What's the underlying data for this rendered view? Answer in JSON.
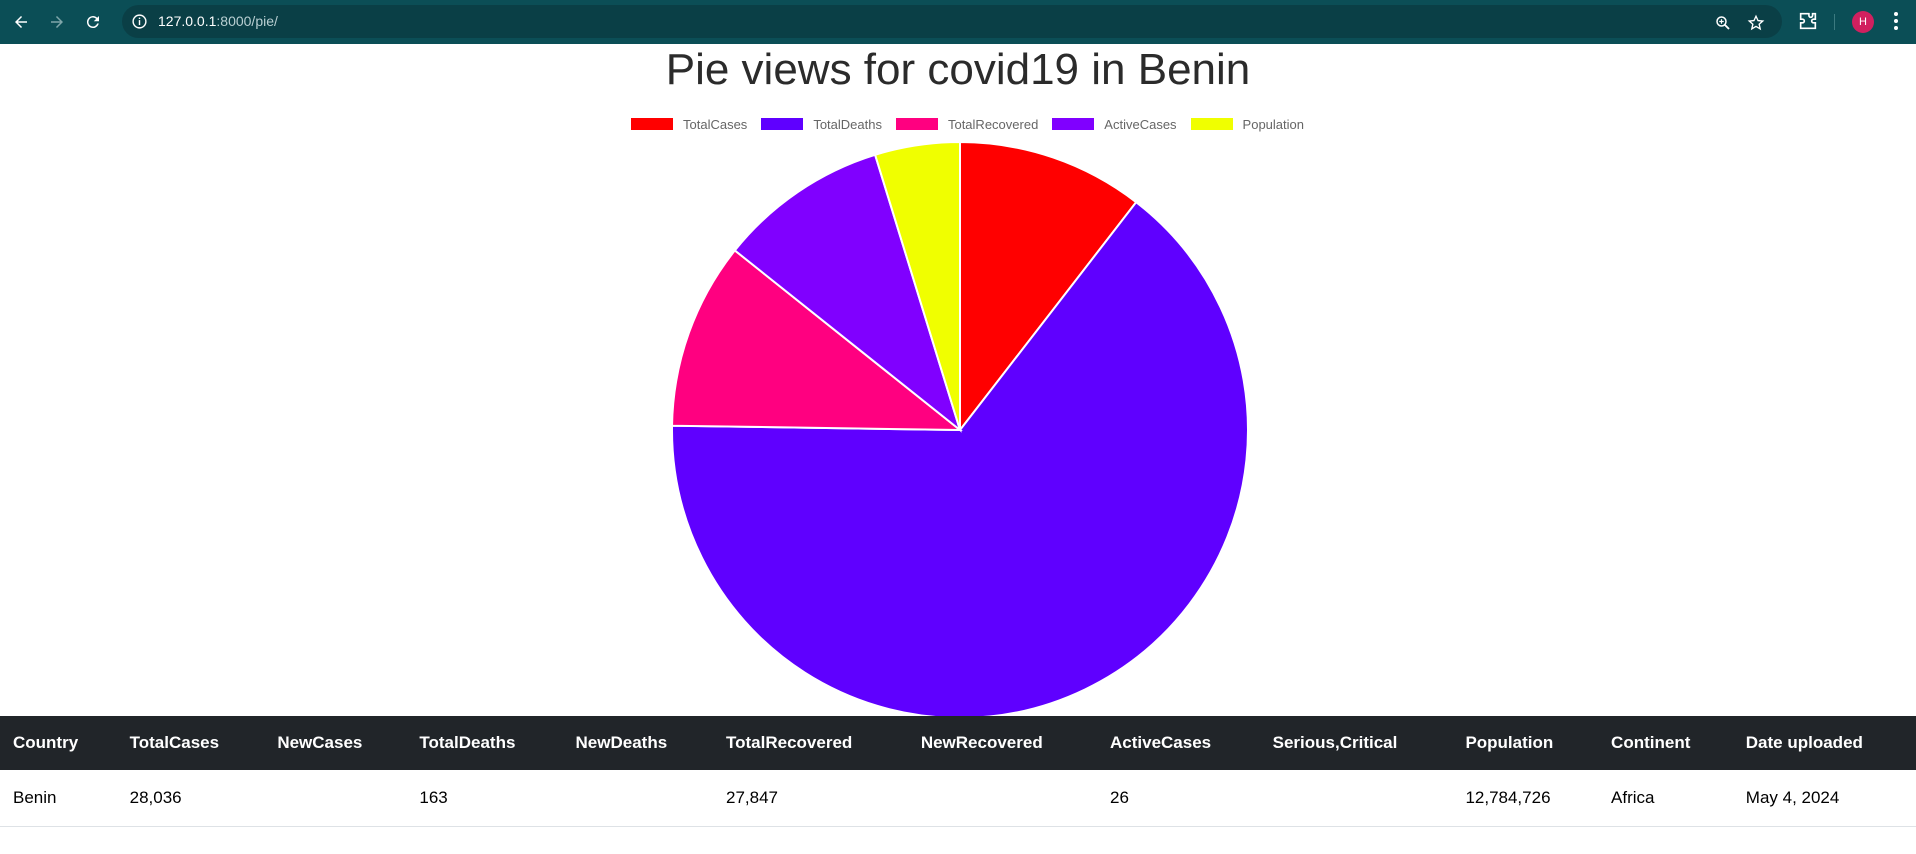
{
  "browser": {
    "url_host": "127.0.0.1",
    "url_rest": ":8000/pie/",
    "avatar_letter": "H"
  },
  "page": {
    "title": "Pie views for covid19 in Benin"
  },
  "chart_data": {
    "type": "pie",
    "categories": [
      "TotalCases",
      "TotalDeaths",
      "TotalRecovered",
      "ActiveCases",
      "Population"
    ],
    "values": [
      11,
      68,
      11,
      10,
      5
    ],
    "colors": [
      "#ff0000",
      "#5f00ff",
      "#ff0080",
      "#8000ff",
      "#f0ff00"
    ],
    "legend_position": "top"
  },
  "table": {
    "headers": [
      "Country",
      "TotalCases",
      "NewCases",
      "TotalDeaths",
      "NewDeaths",
      "TotalRecovered",
      "NewRecovered",
      "ActiveCases",
      "Serious,Critical",
      "Population",
      "Continent",
      "Date uploaded"
    ],
    "rows": [
      [
        "Benin",
        "28,036",
        "",
        "163",
        "",
        "27,847",
        "",
        "26",
        "",
        "12,784,726",
        "Africa",
        "May 4, 2024"
      ]
    ]
  }
}
